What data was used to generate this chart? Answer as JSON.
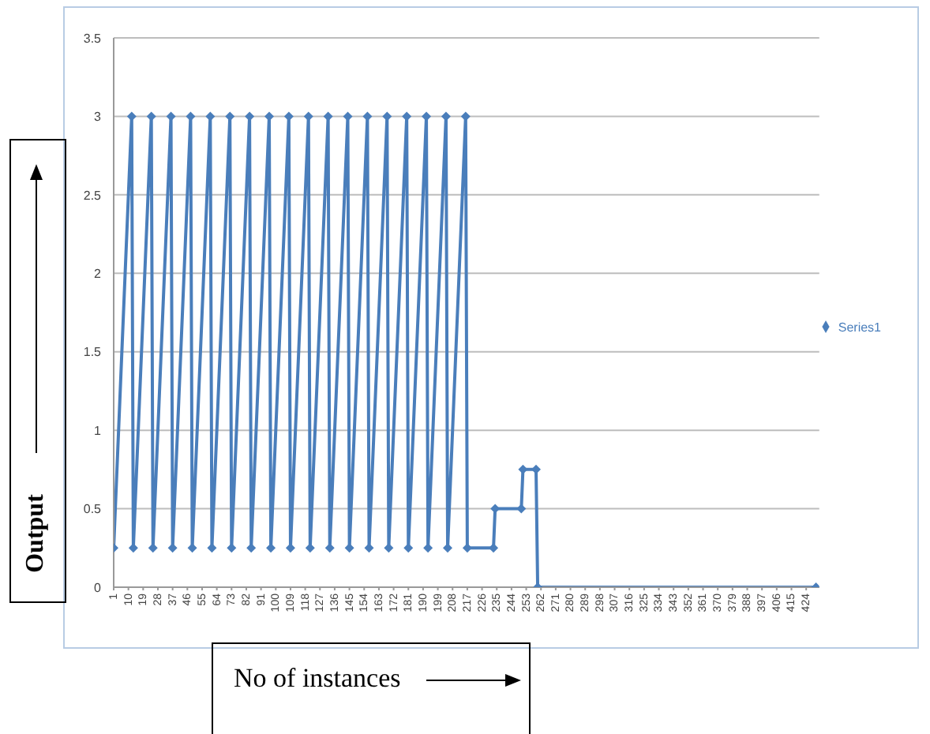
{
  "chart_data": {
    "type": "line",
    "xlabel": "No of instances",
    "ylabel": "Output",
    "x": [
      1,
      12,
      13,
      24,
      25,
      36,
      37,
      48,
      49,
      60,
      61,
      72,
      73,
      84,
      85,
      96,
      97,
      108,
      109,
      120,
      121,
      132,
      133,
      144,
      145,
      156,
      157,
      168,
      169,
      180,
      181,
      192,
      193,
      204,
      205,
      216,
      217,
      233,
      234,
      250,
      251,
      259,
      260,
      430
    ],
    "series": [
      {
        "name": "Series1",
        "color": "#4a7ebb",
        "values": [
          0.25,
          3,
          0.25,
          3,
          0.25,
          3,
          0.25,
          3,
          0.25,
          3,
          0.25,
          3,
          0.25,
          3,
          0.25,
          3,
          0.25,
          3,
          0.25,
          3,
          0.25,
          3,
          0.25,
          3,
          0.25,
          3,
          0.25,
          3,
          0.25,
          3,
          0.25,
          3,
          0.25,
          3,
          0.25,
          3,
          0.25,
          0.25,
          0.5,
          0.5,
          0.75,
          0.75,
          0,
          0
        ]
      }
    ],
    "xlim": [
      1,
      432
    ],
    "xticks": [
      1,
      10,
      19,
      28,
      37,
      46,
      55,
      64,
      73,
      82,
      91,
      100,
      109,
      118,
      127,
      136,
      145,
      154,
      163,
      172,
      181,
      190,
      199,
      208,
      217,
      226,
      235,
      244,
      253,
      262,
      271,
      280,
      289,
      298,
      307,
      316,
      325,
      334,
      343,
      352,
      361,
      370,
      379,
      388,
      397,
      406,
      415,
      424
    ],
    "ylim": [
      0,
      3.5
    ],
    "yticks": [
      0,
      0.5,
      1,
      1.5,
      2,
      2.5,
      3,
      3.5
    ],
    "grid": "y",
    "legend": "right",
    "marker": "diamond",
    "line_style": "solid"
  }
}
